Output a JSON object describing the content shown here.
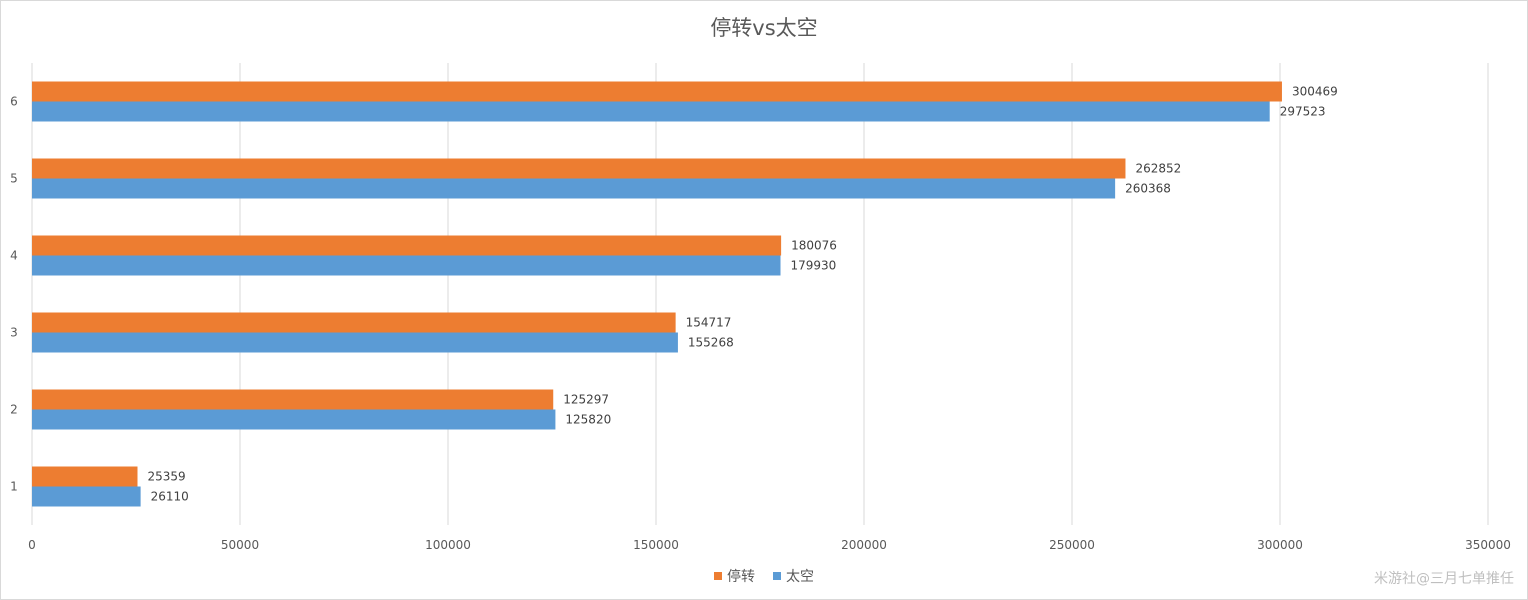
{
  "chart_data": {
    "type": "bar",
    "orientation": "horizontal",
    "title": "停转vs太空",
    "categories": [
      "1",
      "2",
      "3",
      "4",
      "5",
      "6"
    ],
    "series": [
      {
        "name": "停转",
        "color": "#ed7d31",
        "values": [
          25359,
          125297,
          154717,
          180076,
          262852,
          300469
        ]
      },
      {
        "name": "太空",
        "color": "#5b9bd5",
        "values": [
          26110,
          125820,
          155268,
          179930,
          260368,
          297523
        ]
      }
    ],
    "xlim": [
      0,
      350000
    ],
    "x_ticks": [
      "0",
      "50000",
      "100000",
      "150000",
      "200000",
      "250000",
      "300000",
      "350000"
    ],
    "grid": true,
    "legend_position": "bottom",
    "data_labels": true
  },
  "watermark": "米游社@三月七单推任"
}
